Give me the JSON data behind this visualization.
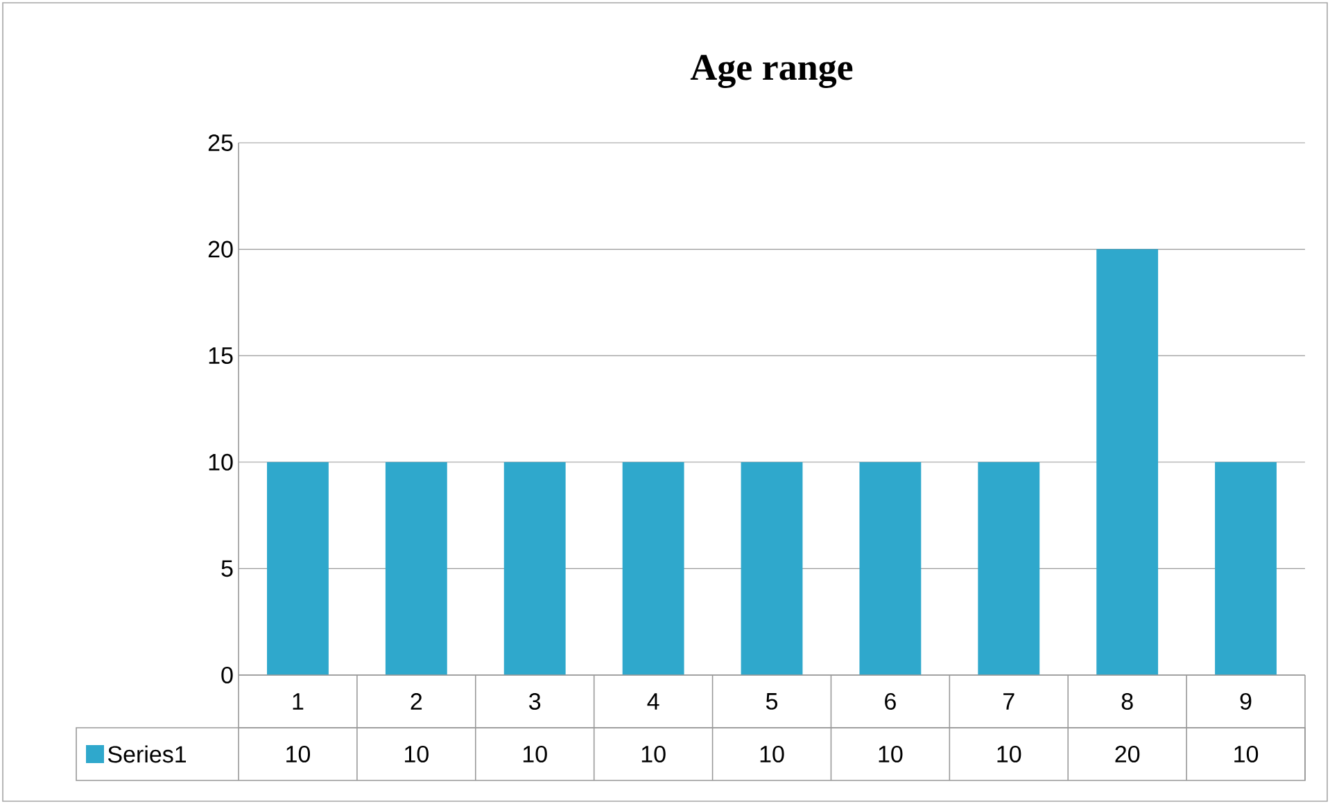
{
  "chart_data": {
    "type": "bar",
    "title": "Age range",
    "categories": [
      "1",
      "2",
      "3",
      "4",
      "5",
      "6",
      "7",
      "8",
      "9"
    ],
    "series": [
      {
        "name": "Series1",
        "color": "#2fa8cc",
        "values": [
          10,
          10,
          10,
          10,
          10,
          10,
          10,
          20,
          10
        ]
      }
    ],
    "ylim": [
      0,
      25
    ],
    "yticks": [
      0,
      5,
      10,
      15,
      20,
      25
    ],
    "grid": "y",
    "legend": "bottom",
    "data_labels": true
  }
}
